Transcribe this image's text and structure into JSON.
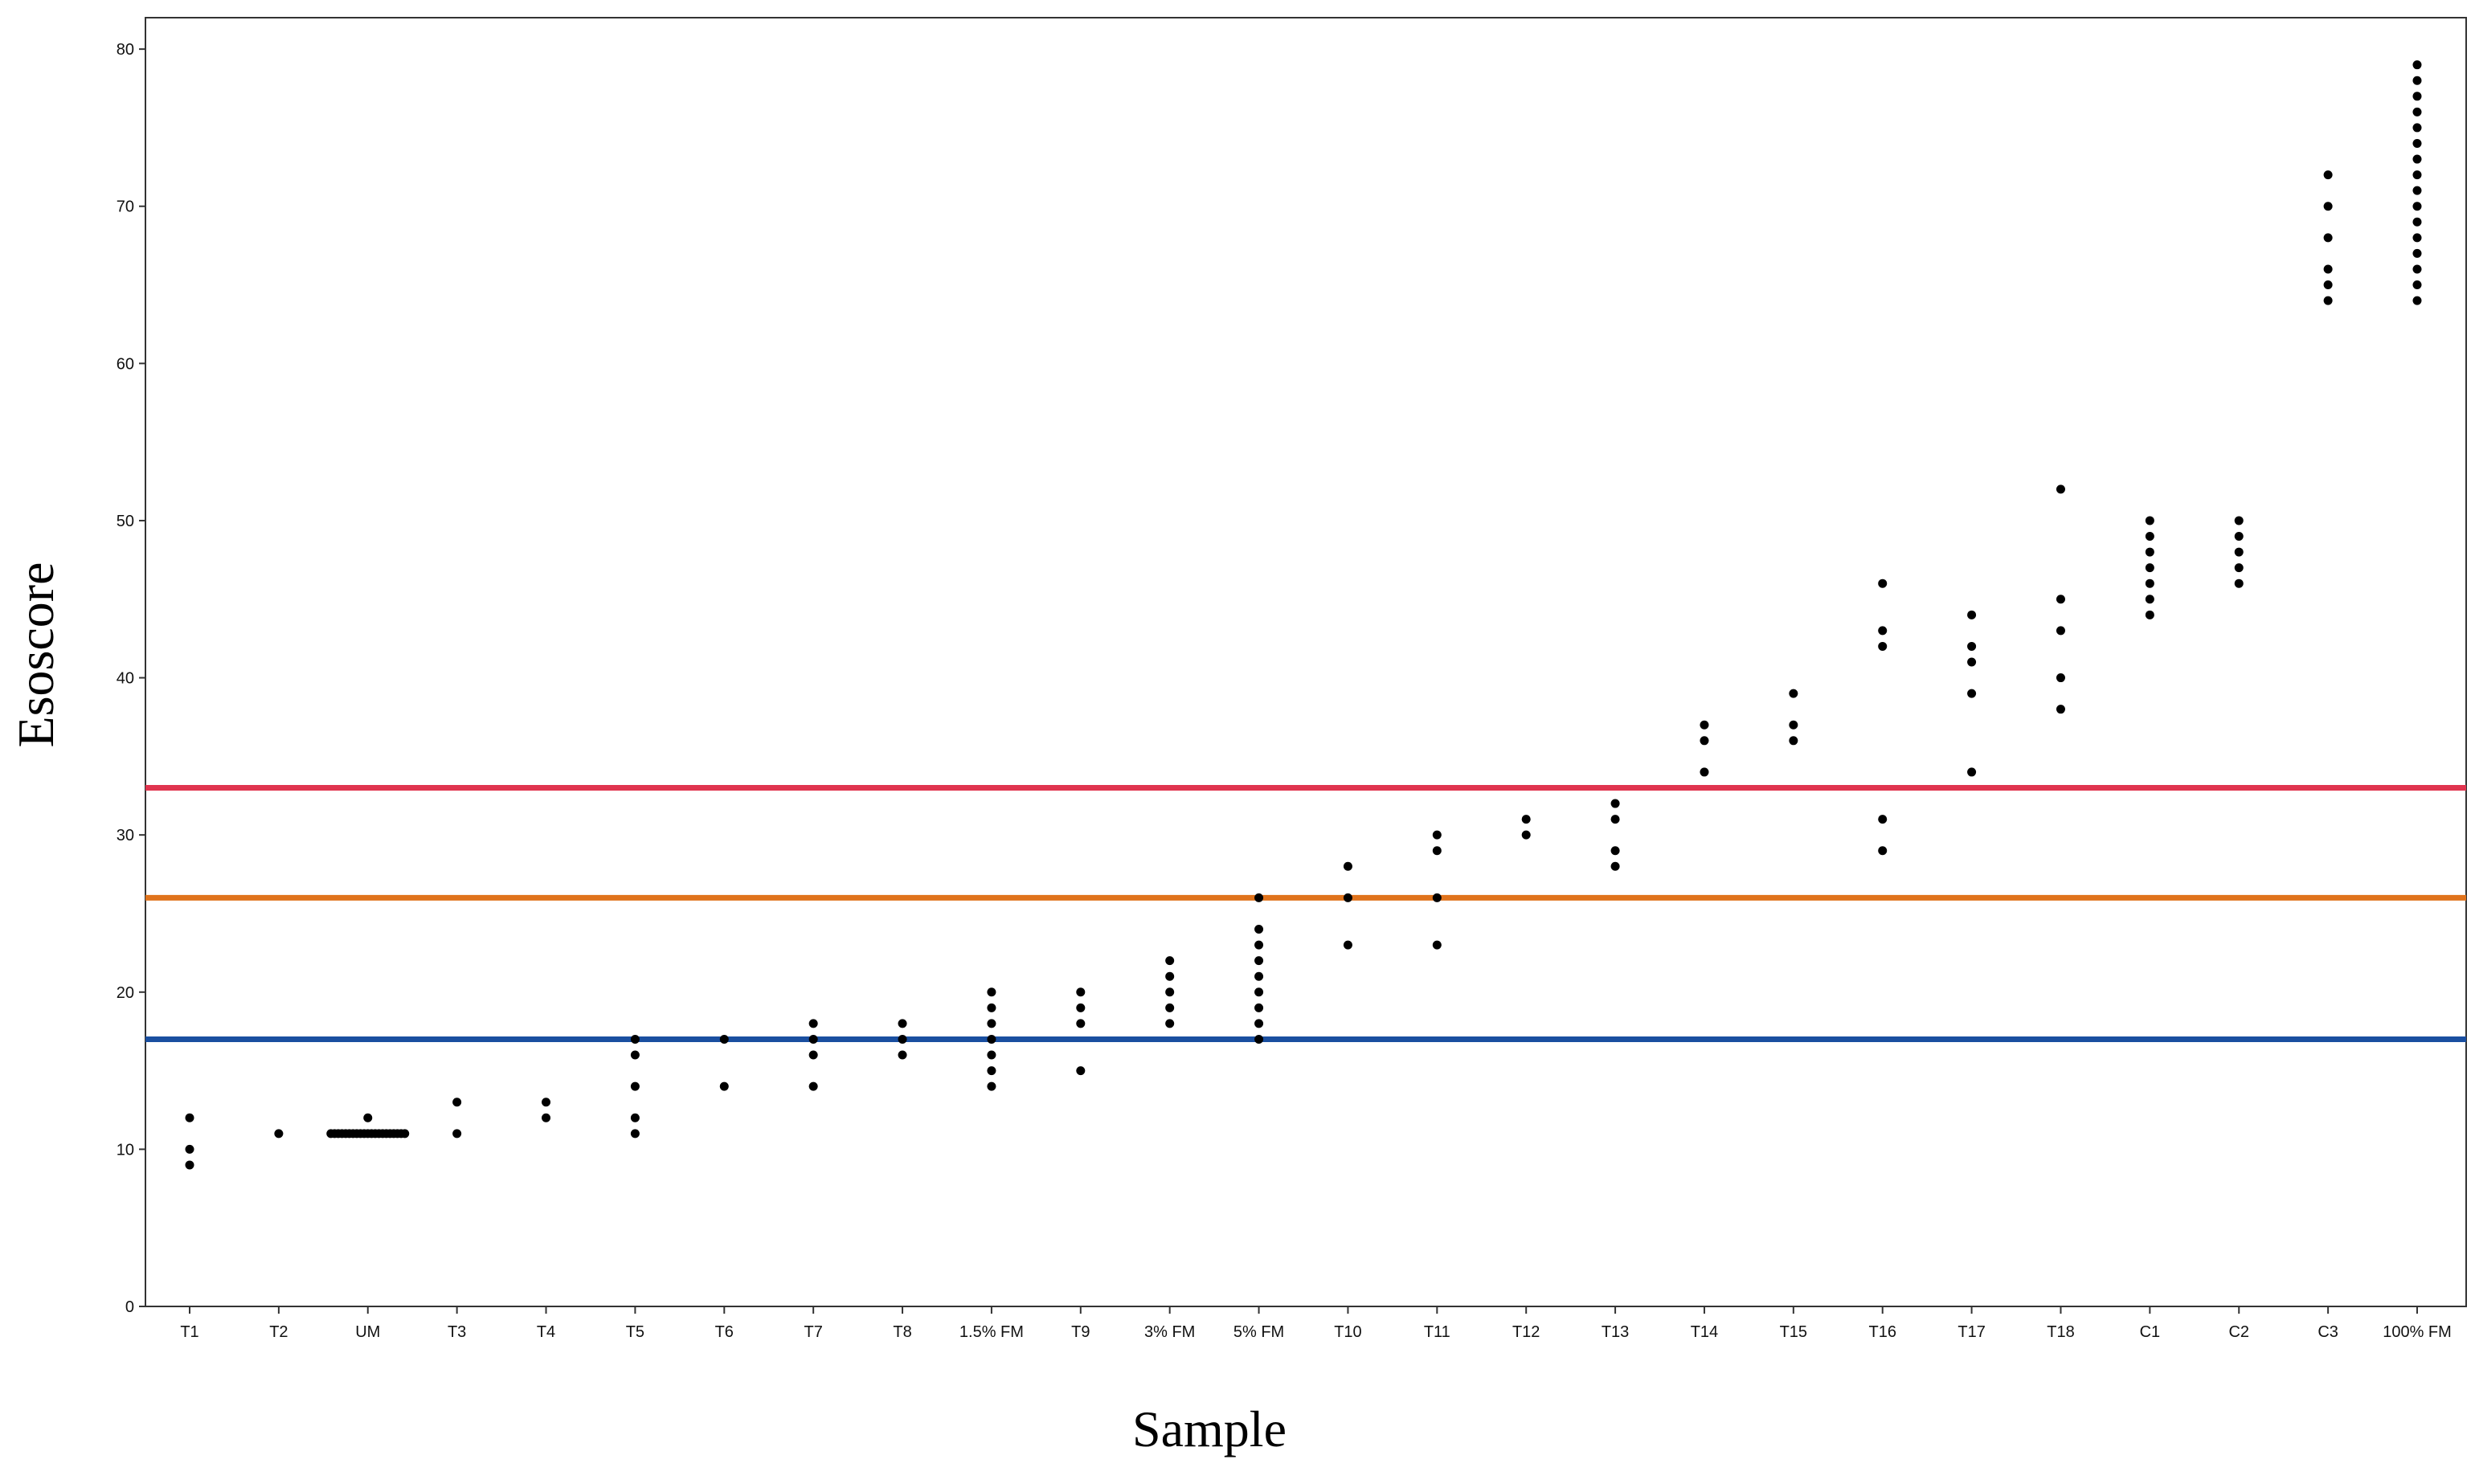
{
  "chart_data": {
    "type": "scatter",
    "title": "",
    "xlabel": "Sample",
    "ylabel": "Esoscore",
    "ylim": [
      0,
      82
    ],
    "yticks": [
      0,
      10,
      20,
      30,
      40,
      50,
      60,
      70,
      80
    ],
    "grid": false,
    "categories": [
      "T1",
      "T2",
      "UM",
      "T3",
      "T4",
      "T5",
      "T6",
      "T7",
      "T8",
      "1.5% FM",
      "T9",
      "3% FM",
      "5% FM",
      "T10",
      "T11",
      "T12",
      "T13",
      "T14",
      "T15",
      "T16",
      "T17",
      "T18",
      "C1",
      "C2",
      "C3",
      "100% FM"
    ],
    "series": [
      {
        "name": "T1",
        "values": [
          9,
          10,
          12
        ]
      },
      {
        "name": "T2",
        "values": [
          11
        ]
      },
      {
        "name": "UM",
        "values": [
          11,
          11,
          11,
          11,
          11,
          11,
          11,
          11,
          11,
          11,
          11,
          11,
          11,
          11,
          11,
          11,
          11,
          11,
          11,
          11,
          11,
          12
        ]
      },
      {
        "name": "T3",
        "values": [
          11,
          13
        ]
      },
      {
        "name": "T4",
        "values": [
          12,
          13
        ]
      },
      {
        "name": "T5",
        "values": [
          11,
          12,
          14,
          16,
          17
        ]
      },
      {
        "name": "T6",
        "values": [
          14,
          17
        ]
      },
      {
        "name": "T7",
        "values": [
          14,
          16,
          17,
          18
        ]
      },
      {
        "name": "T8",
        "values": [
          16,
          17,
          18
        ]
      },
      {
        "name": "1.5% FM",
        "values": [
          14,
          15,
          16,
          17,
          18,
          19,
          20
        ]
      },
      {
        "name": "T9",
        "values": [
          15,
          18,
          19,
          20
        ]
      },
      {
        "name": "3% FM",
        "values": [
          18,
          19,
          20,
          21,
          22
        ]
      },
      {
        "name": "5% FM",
        "values": [
          17,
          18,
          19,
          20,
          21,
          22,
          23,
          24,
          26
        ]
      },
      {
        "name": "T10",
        "values": [
          23,
          26,
          28
        ]
      },
      {
        "name": "T11",
        "values": [
          23,
          26,
          29,
          30
        ]
      },
      {
        "name": "T12",
        "values": [
          30,
          31
        ]
      },
      {
        "name": "T13",
        "values": [
          28,
          29,
          31,
          32
        ]
      },
      {
        "name": "T14",
        "values": [
          34,
          36,
          37
        ]
      },
      {
        "name": "T15",
        "values": [
          36,
          37,
          39
        ]
      },
      {
        "name": "T16",
        "values": [
          29,
          31,
          42,
          43,
          46
        ]
      },
      {
        "name": "T17",
        "values": [
          34,
          39,
          41,
          42,
          44
        ]
      },
      {
        "name": "T18",
        "values": [
          38,
          40,
          43,
          45,
          52
        ]
      },
      {
        "name": "C1",
        "values": [
          44,
          45,
          46,
          47,
          48,
          49,
          50
        ]
      },
      {
        "name": "C2",
        "values": [
          46,
          47,
          48,
          49,
          50
        ]
      },
      {
        "name": "C3",
        "values": [
          64,
          65,
          66,
          68,
          70,
          72
        ]
      },
      {
        "name": "100% FM",
        "values": [
          64,
          65,
          66,
          67,
          68,
          69,
          70,
          71,
          72,
          73,
          74,
          75,
          76,
          77,
          78,
          79
        ]
      }
    ],
    "reference_lines": [
      {
        "name": "red-threshold",
        "value": 33,
        "color": "#e0344f"
      },
      {
        "name": "orange-threshold",
        "value": 26,
        "color": "#e0731c"
      },
      {
        "name": "blue-threshold",
        "value": 17,
        "color": "#1a4fa0"
      }
    ]
  }
}
